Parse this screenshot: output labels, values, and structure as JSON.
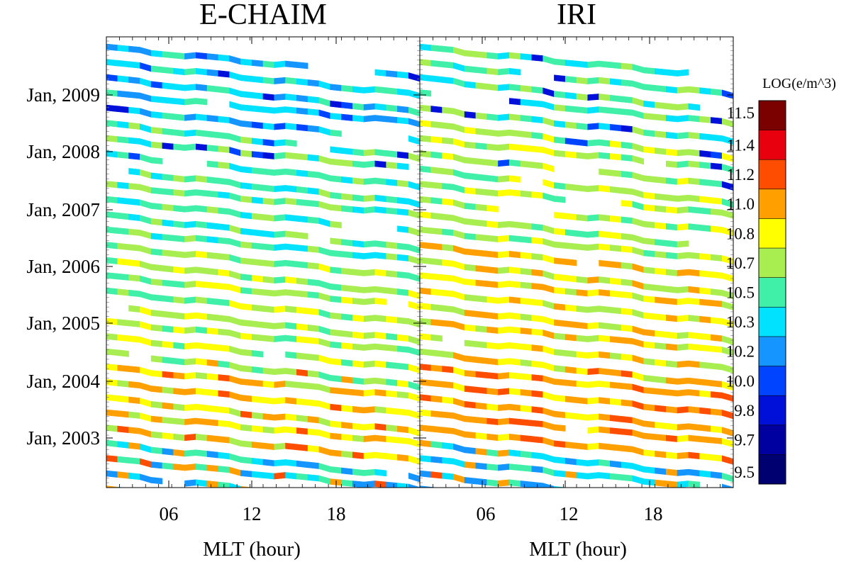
{
  "chart_data": {
    "type": "heatmap",
    "panels": [
      {
        "title": "E-CHAIM",
        "xlabel": "MLT (hour)"
      },
      {
        "title": "IRI",
        "xlabel": "MLT (hour)"
      }
    ],
    "x_range": [
      0,
      24
    ],
    "x_ticks": [
      "06",
      "12",
      "18"
    ],
    "y_ticks": [
      "Jan, 2009",
      "Jan, 2008",
      "Jan, 2007",
      "Jan, 2006",
      "Jan, 2005",
      "Jan, 2004",
      "Jan, 2003"
    ],
    "colorbar": {
      "title": "LOG(e/m^3)",
      "labels": [
        "11.5",
        "11.4",
        "11.2",
        "11.0",
        "10.8",
        "10.7",
        "10.5",
        "10.3",
        "10.2",
        "10.0",
        "9.8",
        "9.7",
        "9.5"
      ],
      "colors": [
        "#7b0000",
        "#e8000e",
        "#ff4d00",
        "#ffa000",
        "#ffff00",
        "#a8ee50",
        "#40f0a8",
        "#00e2ff",
        "#1495ff",
        "#0044ff",
        "#0010d8",
        "#0000a0",
        "#000070"
      ]
    }
  }
}
